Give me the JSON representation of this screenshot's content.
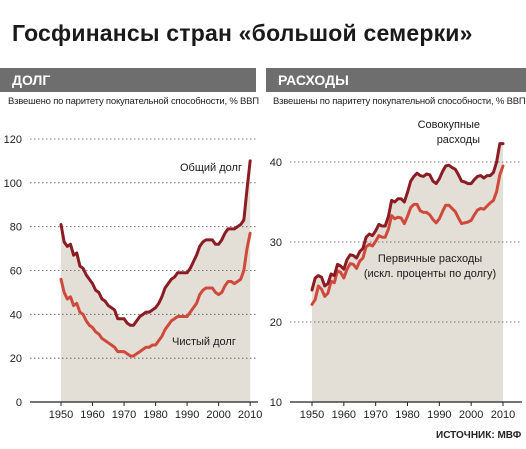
{
  "title": "Госфинансы стран «большой семерки»",
  "source": "ИСТОЧНИК: МВФ",
  "colors": {
    "header_bar": "#6e6e6e",
    "area_fill": "#e4dfd6",
    "gross_line": "#8b1c24",
    "net_line": "#cf4a3c",
    "grid": "#555555"
  },
  "chart_data": [
    {
      "type": "line",
      "title": "ДОЛГ",
      "subtitle": "Взвешено по паритету покупательной способности, % ВВП",
      "ylim": [
        0,
        120
      ],
      "yticks": [
        0,
        20,
        40,
        60,
        80,
        100,
        120
      ],
      "xlim": [
        1945,
        2015
      ],
      "xticks": [
        1950,
        1960,
        1970,
        1980,
        1990,
        2000,
        2010
      ],
      "series": [
        {
          "name": "Общий долг",
          "color": "#8b1c24",
          "x": [
            1950,
            1951,
            1952,
            1953,
            1954,
            1955,
            1956,
            1957,
            1958,
            1959,
            1960,
            1961,
            1962,
            1963,
            1964,
            1965,
            1966,
            1967,
            1968,
            1969,
            1970,
            1971,
            1972,
            1973,
            1974,
            1975,
            1976,
            1977,
            1978,
            1979,
            1980,
            1981,
            1982,
            1983,
            1984,
            1985,
            1986,
            1987,
            1988,
            1989,
            1990,
            1991,
            1992,
            1993,
            1994,
            1995,
            1996,
            1997,
            1998,
            1999,
            2000,
            2001,
            2002,
            2003,
            2004,
            2005,
            2006,
            2007,
            2008,
            2009,
            2010
          ],
          "values": [
            81,
            73,
            71,
            72,
            67,
            68,
            62,
            61,
            58,
            56,
            54,
            51,
            50,
            47,
            46,
            44,
            43,
            42,
            38,
            38,
            38,
            36,
            35,
            35,
            37,
            39,
            40,
            41,
            41,
            42,
            43,
            45,
            48,
            52,
            54,
            56,
            57,
            59,
            59,
            59,
            59,
            61,
            64,
            67,
            71,
            73,
            74,
            74,
            74,
            72,
            72,
            74,
            77,
            79,
            79,
            79,
            80,
            81,
            83,
            97,
            110
          ]
        },
        {
          "name": "Чистый долг",
          "color": "#cf4a3c",
          "x": [
            1950,
            1951,
            1952,
            1953,
            1954,
            1955,
            1956,
            1957,
            1958,
            1959,
            1960,
            1961,
            1962,
            1963,
            1964,
            1965,
            1966,
            1967,
            1968,
            1969,
            1970,
            1971,
            1972,
            1973,
            1974,
            1975,
            1976,
            1977,
            1978,
            1979,
            1980,
            1981,
            1982,
            1983,
            1984,
            1985,
            1986,
            1987,
            1988,
            1989,
            1990,
            1991,
            1992,
            1993,
            1994,
            1995,
            1996,
            1997,
            1998,
            1999,
            2000,
            2001,
            2002,
            2003,
            2004,
            2005,
            2006,
            2007,
            2008,
            2009,
            2010
          ],
          "values": [
            56,
            50,
            47,
            48,
            44,
            45,
            41,
            40,
            37,
            35,
            34,
            32,
            31,
            29,
            28,
            27,
            26,
            25,
            23,
            23,
            23,
            22,
            21,
            21,
            22,
            23,
            24,
            25,
            25,
            26,
            26,
            28,
            30,
            33,
            35,
            37,
            38,
            39,
            39,
            39,
            39,
            41,
            43,
            45,
            49,
            51,
            52,
            52,
            52,
            50,
            49,
            50,
            53,
            55,
            55,
            54,
            55,
            56,
            60,
            70,
            77
          ]
        }
      ],
      "annotations": [
        "Общий долг",
        "Чистый долг"
      ]
    },
    {
      "type": "line",
      "title": "РАСХОДЫ",
      "subtitle": "Взвешены по паритету покупательной способности, % ВВП",
      "ylim": [
        10,
        45
      ],
      "yticks": [
        10,
        20,
        30,
        40
      ],
      "xlim": [
        1947,
        2012
      ],
      "xticks": [
        1950,
        1960,
        1970,
        1980,
        1990,
        2000,
        2010
      ],
      "series": [
        {
          "name": "Совокупные расходы",
          "color": "#8b1c24",
          "x": [
            1950,
            1951,
            1952,
            1953,
            1954,
            1955,
            1956,
            1957,
            1958,
            1959,
            1960,
            1961,
            1962,
            1963,
            1964,
            1965,
            1966,
            1967,
            1968,
            1969,
            1970,
            1971,
            1972,
            1973,
            1974,
            1975,
            1976,
            1977,
            1978,
            1979,
            1980,
            1981,
            1982,
            1983,
            1984,
            1985,
            1986,
            1987,
            1988,
            1989,
            1990,
            1991,
            1992,
            1993,
            1994,
            1995,
            1996,
            1997,
            1998,
            1999,
            2000,
            2001,
            2002,
            2003,
            2004,
            2005,
            2006,
            2007,
            2008,
            2009,
            2010
          ],
          "values": [
            24.0,
            25.5,
            25.8,
            25.6,
            24.5,
            24.8,
            26.0,
            25.8,
            27.2,
            27.0,
            26.6,
            27.8,
            28.4,
            28.3,
            28.0,
            28.8,
            29.2,
            30.6,
            31.0,
            30.8,
            31.4,
            32.2,
            32.0,
            32.0,
            33.2,
            35.2,
            35.0,
            35.4,
            35.4,
            35.0,
            36.2,
            37.6,
            38.2,
            38.6,
            38.3,
            38.2,
            38.5,
            38.4,
            37.6,
            37.3,
            37.9,
            38.8,
            39.5,
            39.6,
            39.3,
            39.1,
            38.4,
            37.6,
            37.5,
            37.3,
            37.3,
            37.8,
            38.2,
            38.3,
            38.0,
            38.3,
            38.3,
            38.7,
            40.0,
            42.3,
            42.3
          ]
        },
        {
          "name": "Первичные расходы (искл. проценты по долгу)",
          "color": "#cf4a3c",
          "x": [
            1950,
            1951,
            1952,
            1953,
            1954,
            1955,
            1956,
            1957,
            1958,
            1959,
            1960,
            1961,
            1962,
            1963,
            1964,
            1965,
            1966,
            1967,
            1968,
            1969,
            1970,
            1971,
            1972,
            1973,
            1974,
            1975,
            1976,
            1977,
            1978,
            1979,
            1980,
            1981,
            1982,
            1983,
            1984,
            1985,
            1986,
            1987,
            1988,
            1989,
            1990,
            1991,
            1992,
            1993,
            1994,
            1995,
            1996,
            1997,
            1998,
            1999,
            2000,
            2001,
            2002,
            2003,
            2004,
            2005,
            2006,
            2007,
            2008,
            2009,
            2010
          ],
          "values": [
            22.2,
            22.8,
            24.5,
            24.1,
            23.2,
            23.6,
            25.1,
            24.9,
            26.4,
            26.2,
            25.5,
            26.6,
            27.3,
            27.2,
            26.7,
            27.6,
            28.0,
            29.4,
            29.7,
            29.5,
            30.1,
            30.8,
            30.6,
            30.6,
            31.6,
            33.3,
            32.9,
            33.1,
            33.0,
            32.3,
            33.2,
            34.3,
            34.7,
            34.7,
            33.9,
            33.7,
            33.7,
            33.4,
            32.8,
            32.4,
            32.9,
            33.8,
            34.6,
            34.6,
            34.2,
            33.8,
            33.0,
            32.3,
            32.4,
            32.5,
            32.7,
            33.4,
            34.0,
            34.2,
            34.1,
            34.5,
            34.9,
            35.2,
            36.3,
            38.4,
            39.5
          ]
        }
      ],
      "annotations": [
        "Совокупные расходы",
        "Первичные расходы (искл. проценты по долгу)"
      ]
    }
  ],
  "labels": {
    "debt": {
      "title": "ДОЛГ",
      "subtitle": "Взвешено по паритету покупательной способности, % ВВП",
      "gross": "Общий долг",
      "net": "Чистый долг"
    },
    "spend": {
      "title": "РАСХОДЫ",
      "subtitle": "Взвешены по паритету покупательной способности, % ВВП",
      "total_1": "Совокупные",
      "total_2": "расходы",
      "primary_1": "Первичные расходы",
      "primary_2": "(искл. проценты по долгу)"
    }
  }
}
